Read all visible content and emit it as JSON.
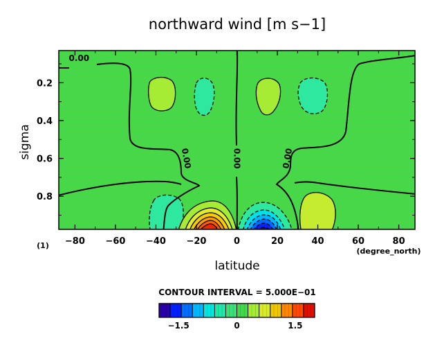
{
  "chart_data": {
    "type": "contour",
    "title": "northward wind [m s−1]",
    "xlabel": "latitude",
    "ylabel": "sigma",
    "x_unit_label": "(degree_north)",
    "corner_label": "(1)",
    "xlim": [
      -88,
      88
    ],
    "ylim_inverted": [
      0.03,
      0.975
    ],
    "x_ticks": [
      -80,
      -60,
      -40,
      -20,
      0,
      20,
      40,
      60,
      80
    ],
    "y_ticks": [
      0.2,
      0.4,
      0.6,
      0.8
    ],
    "x_tick_labels": [
      "−80",
      "−60",
      "−40",
      "−20",
      "0",
      "20",
      "40",
      "60",
      "80"
    ],
    "y_tick_labels": [
      "0.2",
      "0.4",
      "0.6",
      "0.8"
    ],
    "contour_interval_text": "CONTOUR INTERVAL = 5.000E−01",
    "contour_labels": [
      {
        "text": "0.00",
        "x": -78,
        "y": 0.07,
        "rotate": 0
      },
      {
        "text": "0.00",
        "x": -25,
        "y": 0.6,
        "rotate": 80
      },
      {
        "text": "0.00",
        "x": 0,
        "y": 0.6,
        "rotate": 90
      },
      {
        "text": "0.00",
        "x": 25,
        "y": 0.6,
        "rotate": -80
      }
    ],
    "features": [
      {
        "lat": -43,
        "sigma": 0.27,
        "value": 0.25,
        "sign": "positive"
      },
      {
        "lat": -17,
        "sigma": 0.27,
        "value": -0.25,
        "sign": "negative"
      },
      {
        "lat": 17,
        "sigma": 0.29,
        "value": 0.25,
        "sign": "positive"
      },
      {
        "lat": 43,
        "sigma": 0.27,
        "value": -0.25,
        "sign": "negative"
      },
      {
        "lat": -43,
        "sigma": 0.88,
        "value": -0.4,
        "sign": "negative"
      },
      {
        "lat": 43,
        "sigma": 0.87,
        "value": 0.4,
        "sign": "positive"
      },
      {
        "lat": -11,
        "sigma": 0.975,
        "value": 2.0,
        "sign": "positive"
      },
      {
        "lat": 11,
        "sigma": 0.975,
        "value": -2.0,
        "sign": "negative"
      }
    ],
    "colorbar": {
      "colors": [
        "#2a00a8",
        "#0020ff",
        "#006eff",
        "#00b8ff",
        "#00e8e0",
        "#20e8a8",
        "#3ee07a",
        "#44d84c",
        "#a6ec34",
        "#d8ec2a",
        "#f0c800",
        "#ff8800",
        "#ff4800",
        "#e01000"
      ],
      "tick_labels": [
        "−1.5",
        "0",
        "1.5"
      ],
      "tick_values": [
        -1.5,
        0,
        1.5
      ],
      "range": [
        -2.0,
        2.0
      ]
    }
  }
}
